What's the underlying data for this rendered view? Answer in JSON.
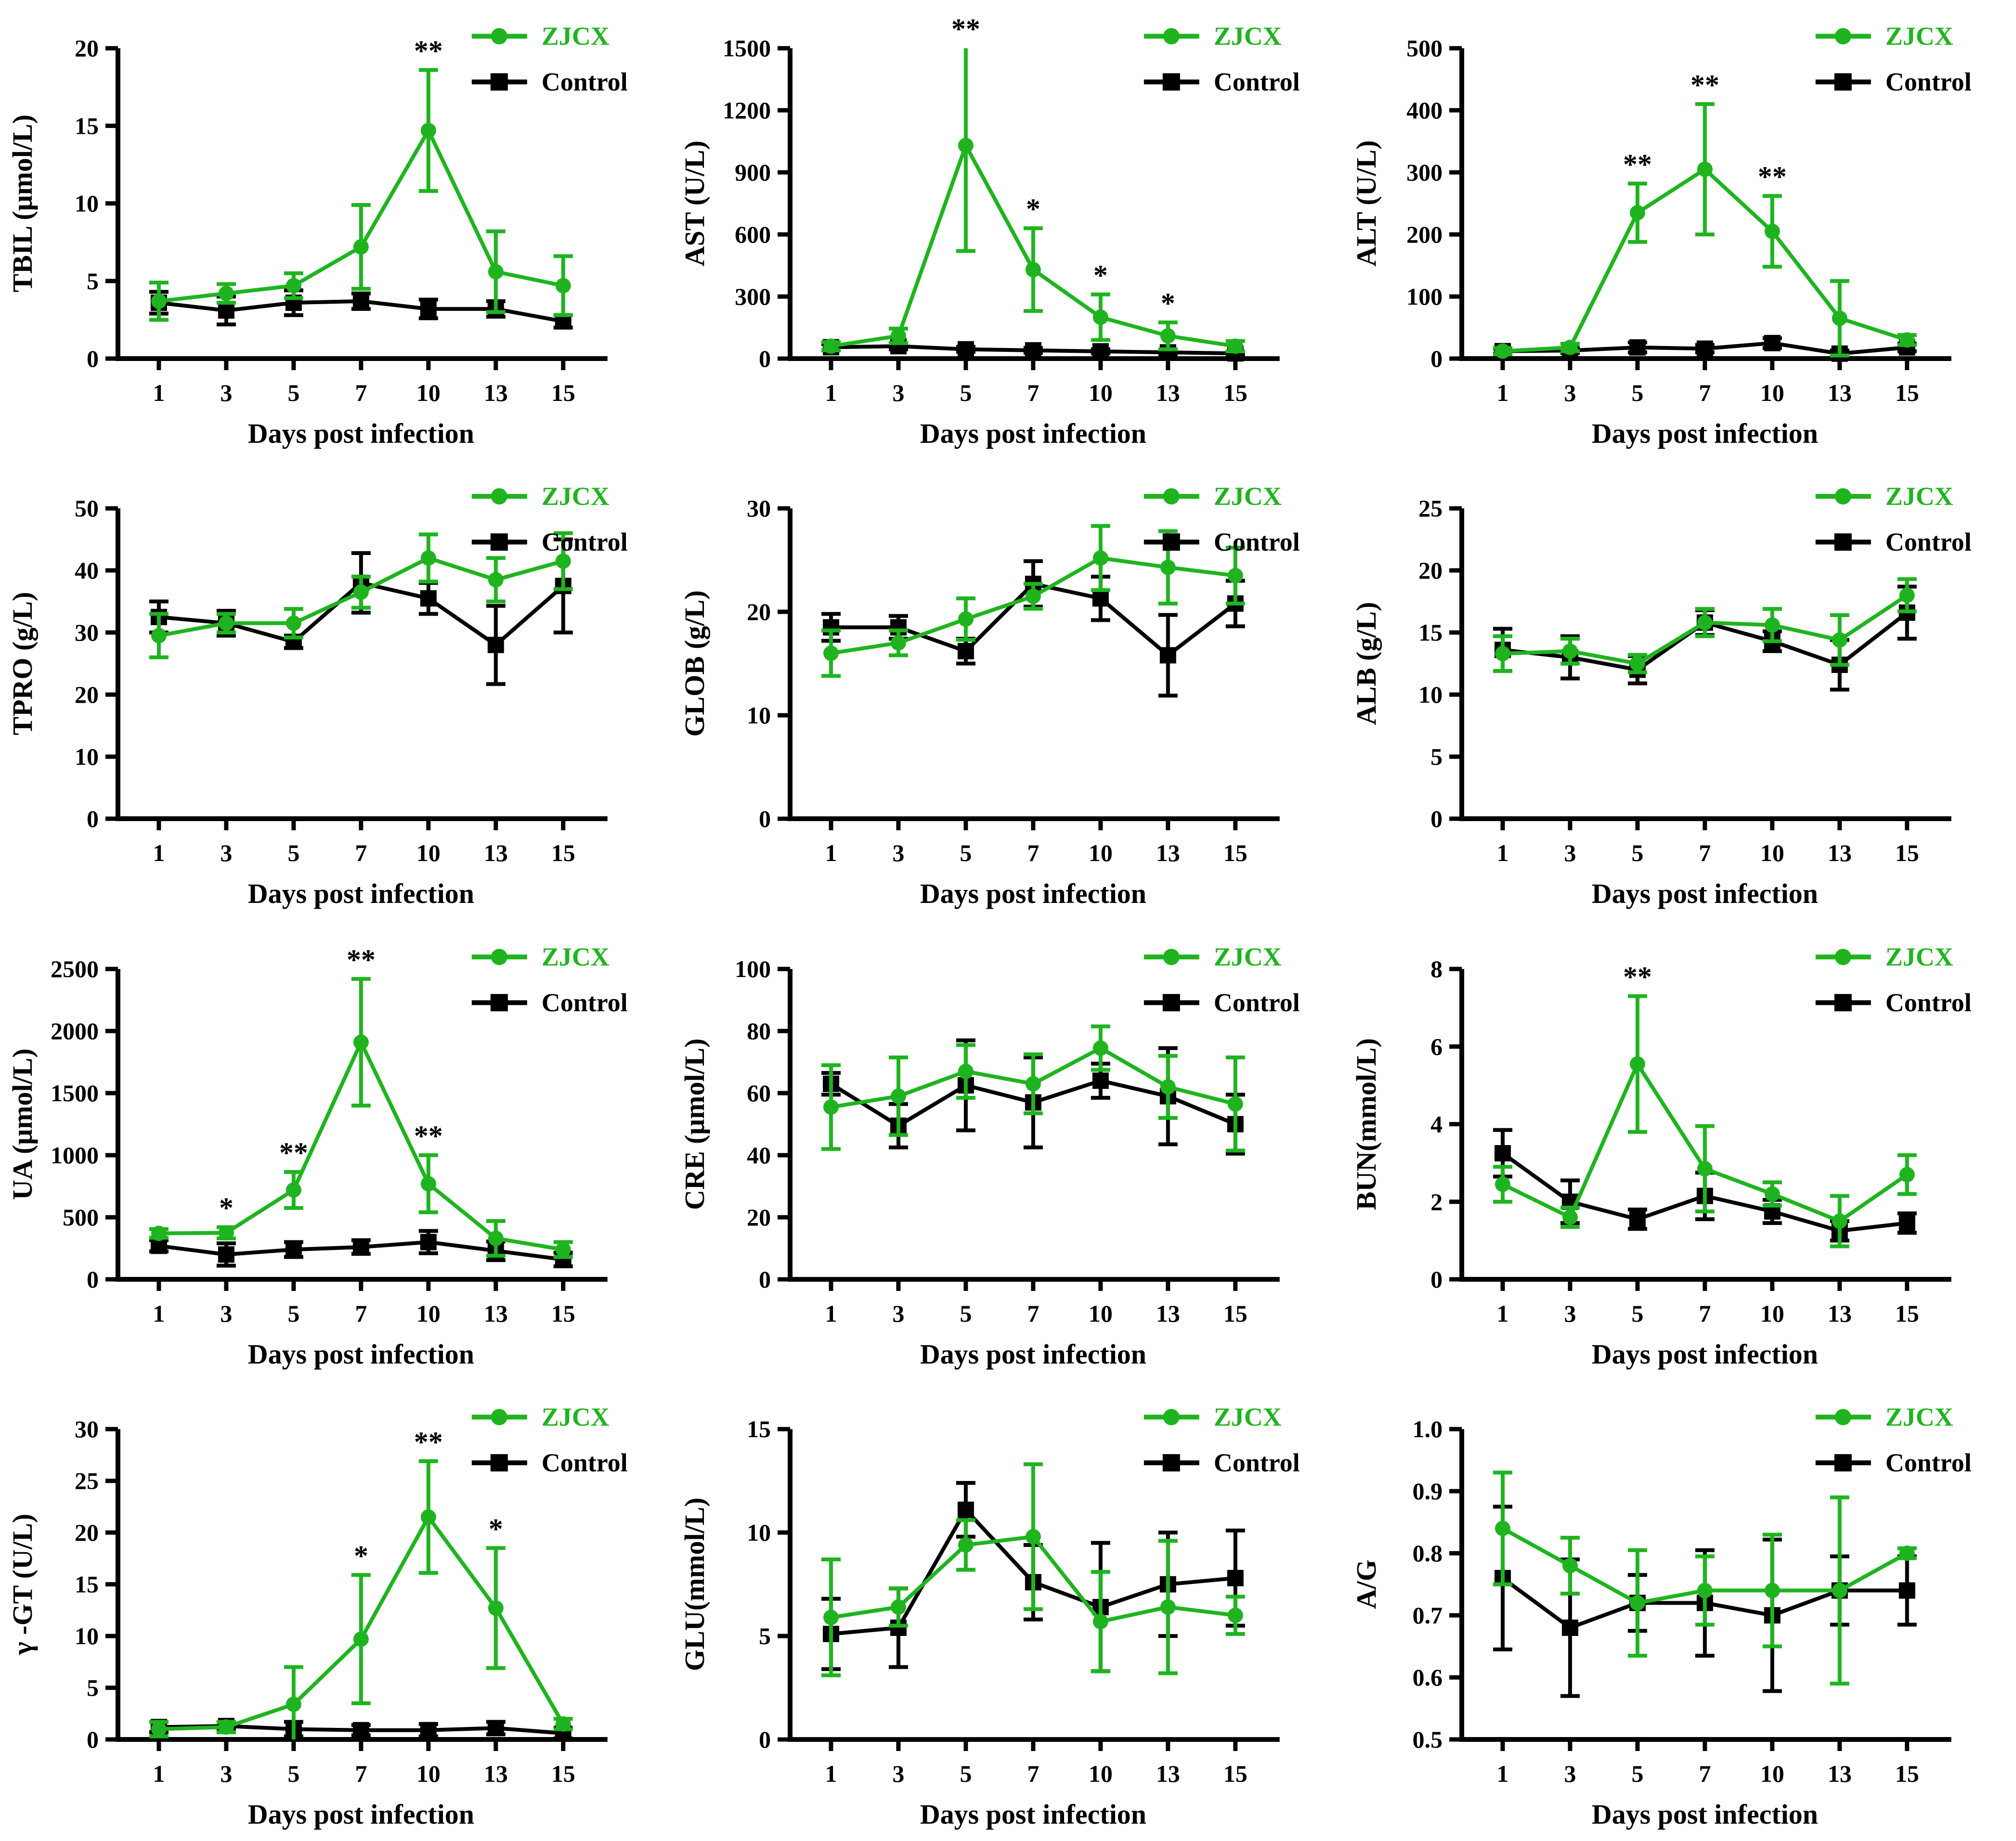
{
  "colors": {
    "zjcx": "#1fb41f",
    "control": "#000000"
  },
  "legend": {
    "zjcx_label": "ZJCX",
    "control_label": "Control"
  },
  "xlabel": "Days post infection",
  "x_labels": [
    "1",
    "3",
    "5",
    "7",
    "10",
    "13",
    "15"
  ],
  "chart_data": [
    {
      "type": "line",
      "id": "tbil",
      "ylabel": "TBIL (μmol/L)",
      "xlabel": "Days post infection",
      "x_labels": [
        "1",
        "3",
        "5",
        "7",
        "10",
        "13",
        "15"
      ],
      "ylim": [
        0,
        20
      ],
      "yticks": [
        0,
        5,
        10,
        15,
        20
      ],
      "ytick_labels": [
        "0",
        "5",
        "10",
        "15",
        "20"
      ],
      "legend_position": "top-right",
      "grid": false,
      "series": [
        {
          "name": "ZJCX",
          "color_key": "zjcx",
          "marker": "circle",
          "values": [
            3.7,
            4.2,
            4.7,
            7.2,
            14.7,
            5.6,
            4.7
          ],
          "err": [
            1.2,
            0.6,
            0.8,
            2.7,
            3.9,
            2.6,
            1.9
          ]
        },
        {
          "name": "Control",
          "color_key": "control",
          "marker": "square",
          "values": [
            3.6,
            3.1,
            3.6,
            3.7,
            3.2,
            3.2,
            2.4
          ],
          "err": [
            0.7,
            0.9,
            0.8,
            0.5,
            0.6,
            0.5,
            0.4
          ]
        }
      ],
      "annotations": [
        {
          "x": "10",
          "text": "**"
        }
      ]
    },
    {
      "type": "line",
      "id": "ast",
      "ylabel": "AST (U/L)",
      "xlabel": "Days post infection",
      "x_labels": [
        "1",
        "3",
        "5",
        "7",
        "10",
        "13",
        "15"
      ],
      "ylim": [
        0,
        1500
      ],
      "yticks": [
        0,
        300,
        600,
        900,
        1200,
        1500
      ],
      "ytick_labels": [
        "0",
        "300",
        "600",
        "900",
        "1200",
        "1500"
      ],
      "legend_position": "top-right",
      "grid": false,
      "series": [
        {
          "name": "ZJCX",
          "color_key": "zjcx",
          "marker": "circle",
          "values": [
            60,
            110,
            1030,
            430,
            200,
            110,
            60
          ],
          "err": [
            20,
            35,
            510,
            200,
            110,
            65,
            25
          ]
        },
        {
          "name": "Control",
          "color_key": "control",
          "marker": "square",
          "values": [
            55,
            60,
            45,
            40,
            35,
            30,
            25
          ],
          "err": [
            15,
            15,
            12,
            12,
            10,
            10,
            8
          ]
        }
      ],
      "annotations": [
        {
          "x": "5",
          "text": "**"
        },
        {
          "x": "7",
          "text": "*"
        },
        {
          "x": "10",
          "text": "*"
        },
        {
          "x": "13",
          "text": "*"
        }
      ]
    },
    {
      "type": "line",
      "id": "alt",
      "ylabel": "ALT (U/L)",
      "xlabel": "Days post infection",
      "x_labels": [
        "1",
        "3",
        "5",
        "7",
        "10",
        "13",
        "15"
      ],
      "ylim": [
        0,
        500
      ],
      "yticks": [
        0,
        100,
        200,
        300,
        400,
        500
      ],
      "ytick_labels": [
        "0",
        "100",
        "200",
        "300",
        "400",
        "500"
      ],
      "legend_position": "top-right",
      "grid": false,
      "series": [
        {
          "name": "ZJCX",
          "color_key": "zjcx",
          "marker": "circle",
          "values": [
            12,
            18,
            235,
            305,
            205,
            65,
            30
          ],
          "err": [
            5,
            6,
            47,
            105,
            57,
            60,
            8
          ]
        },
        {
          "name": "Control",
          "color_key": "control",
          "marker": "square",
          "values": [
            12,
            13,
            18,
            16,
            25,
            8,
            18
          ],
          "err": [
            4,
            4,
            8,
            6,
            8,
            5,
            6
          ]
        }
      ],
      "annotations": [
        {
          "x": "5",
          "text": "**"
        },
        {
          "x": "7",
          "text": "**"
        },
        {
          "x": "10",
          "text": "**"
        }
      ]
    },
    {
      "type": "line",
      "id": "tpro",
      "ylabel": "TPRO (g/L)",
      "xlabel": "Days post infection",
      "x_labels": [
        "1",
        "3",
        "5",
        "7",
        "10",
        "13",
        "15"
      ],
      "ylim": [
        0,
        50
      ],
      "yticks": [
        0,
        10,
        20,
        30,
        40,
        50
      ],
      "ytick_labels": [
        "0",
        "10",
        "20",
        "30",
        "40",
        "50"
      ],
      "legend_position": "top-right",
      "grid": false,
      "series": [
        {
          "name": "ZJCX",
          "color_key": "zjcx",
          "marker": "circle",
          "values": [
            29.5,
            31.5,
            31.5,
            36.5,
            42,
            38.5,
            41.5
          ],
          "err": [
            3.5,
            1.5,
            2.3,
            2.5,
            3.8,
            3.5,
            4.5
          ]
        },
        {
          "name": "Control",
          "color_key": "control",
          "marker": "square",
          "values": [
            32.5,
            31.5,
            28.5,
            38,
            35.5,
            28,
            37.5
          ],
          "err": [
            2.5,
            2.0,
            1.0,
            4.8,
            2.5,
            6.3,
            7.5
          ]
        }
      ],
      "annotations": []
    },
    {
      "type": "line",
      "id": "glob",
      "ylabel": "GLOB (g/L)",
      "xlabel": "Days post infection",
      "x_labels": [
        "1",
        "3",
        "5",
        "7",
        "10",
        "13",
        "15"
      ],
      "ylim": [
        0,
        30
      ],
      "yticks": [
        0,
        10,
        20,
        30
      ],
      "ytick_labels": [
        "0",
        "10",
        "20",
        "30"
      ],
      "legend_position": "top-right",
      "grid": false,
      "series": [
        {
          "name": "ZJCX",
          "color_key": "zjcx",
          "marker": "circle",
          "values": [
            16,
            17,
            19.3,
            21.5,
            25.2,
            24.3,
            23.5
          ],
          "err": [
            2.2,
            1.2,
            2.0,
            1.2,
            3.1,
            3.5,
            2.7
          ]
        },
        {
          "name": "Control",
          "color_key": "control",
          "marker": "square",
          "values": [
            18.5,
            18.5,
            16.2,
            22.7,
            21.3,
            15.8,
            20.8
          ],
          "err": [
            1.3,
            1.1,
            1.2,
            2.2,
            2.1,
            3.9,
            2.2
          ]
        }
      ],
      "annotations": []
    },
    {
      "type": "line",
      "id": "alb",
      "ylabel": "ALB (g/L)",
      "xlabel": "Days post infection",
      "x_labels": [
        "1",
        "3",
        "5",
        "7",
        "10",
        "13",
        "15"
      ],
      "ylim": [
        0,
        25
      ],
      "yticks": [
        0,
        5,
        10,
        15,
        20,
        25
      ],
      "ytick_labels": [
        "0",
        "5",
        "10",
        "15",
        "20",
        "25"
      ],
      "legend_position": "top-right",
      "grid": false,
      "series": [
        {
          "name": "ZJCX",
          "color_key": "zjcx",
          "marker": "circle",
          "values": [
            13.3,
            13.5,
            12.5,
            15.8,
            15.6,
            14.4,
            18.0
          ],
          "err": [
            1.4,
            1.0,
            0.7,
            1.1,
            1.3,
            2.0,
            1.3
          ]
        },
        {
          "name": "Control",
          "color_key": "control",
          "marker": "square",
          "values": [
            13.6,
            13.0,
            12.0,
            15.8,
            14.3,
            12.4,
            16.6
          ],
          "err": [
            1.7,
            1.7,
            1.1,
            1.0,
            0.8,
            2.0,
            2.1
          ]
        }
      ],
      "annotations": []
    },
    {
      "type": "line",
      "id": "ua",
      "ylabel": "UA (μmol/L)",
      "xlabel": "Days post infection",
      "x_labels": [
        "1",
        "3",
        "5",
        "7",
        "10",
        "13",
        "15"
      ],
      "ylim": [
        0,
        2500
      ],
      "yticks": [
        0,
        500,
        1000,
        1500,
        2000,
        2500
      ],
      "ytick_labels": [
        "0",
        "500",
        "1000",
        "1500",
        "2000",
        "2500"
      ],
      "legend_position": "top-right",
      "grid": false,
      "series": [
        {
          "name": "ZJCX",
          "color_key": "zjcx",
          "marker": "circle",
          "values": [
            370,
            375,
            720,
            1910,
            770,
            330,
            240
          ],
          "err": [
            35,
            45,
            145,
            510,
            230,
            140,
            60
          ]
        },
        {
          "name": "Control",
          "color_key": "control",
          "marker": "square",
          "values": [
            270,
            200,
            240,
            260,
            300,
            230,
            160
          ],
          "err": [
            45,
            90,
            60,
            55,
            90,
            75,
            55
          ]
        }
      ],
      "annotations": [
        {
          "x": "3",
          "text": "*"
        },
        {
          "x": "5",
          "text": "**"
        },
        {
          "x": "7",
          "text": "**"
        },
        {
          "x": "10",
          "text": "**"
        }
      ]
    },
    {
      "type": "line",
      "id": "cre",
      "ylabel": "CRE (μmol/L)",
      "xlabel": "Days post infection",
      "x_labels": [
        "1",
        "3",
        "5",
        "7",
        "10",
        "13",
        "15"
      ],
      "ylim": [
        0,
        100
      ],
      "yticks": [
        0,
        20,
        40,
        60,
        80,
        100
      ],
      "ytick_labels": [
        "0",
        "20",
        "40",
        "60",
        "80",
        "100"
      ],
      "legend_position": "top-right",
      "grid": false,
      "series": [
        {
          "name": "ZJCX",
          "color_key": "zjcx",
          "marker": "circle",
          "values": [
            55.5,
            59,
            67,
            63,
            74.5,
            62,
            56.5
          ],
          "err": [
            13.5,
            12.5,
            8.5,
            9.5,
            7,
            10,
            15
          ]
        },
        {
          "name": "Control",
          "color_key": "control",
          "marker": "square",
          "values": [
            63,
            49.5,
            62.5,
            57,
            64,
            59,
            50
          ],
          "err": [
            3.5,
            7,
            14.5,
            14.5,
            5.5,
            15.5,
            9.5
          ]
        }
      ],
      "annotations": []
    },
    {
      "type": "line",
      "id": "bun",
      "ylabel": "BUN(mmol/L)",
      "xlabel": "Days post infection",
      "x_labels": [
        "1",
        "3",
        "5",
        "7",
        "10",
        "13",
        "15"
      ],
      "ylim": [
        0,
        8
      ],
      "yticks": [
        0,
        2,
        4,
        6,
        8
      ],
      "ytick_labels": [
        "0",
        "2",
        "4",
        "6",
        "8"
      ],
      "legend_position": "top-right",
      "grid": false,
      "series": [
        {
          "name": "ZJCX",
          "color_key": "zjcx",
          "marker": "circle",
          "values": [
            2.45,
            1.6,
            5.55,
            2.85,
            2.2,
            1.5,
            2.7
          ],
          "err": [
            0.45,
            0.25,
            1.75,
            1.1,
            0.3,
            0.65,
            0.5
          ]
        },
        {
          "name": "Control",
          "color_key": "control",
          "marker": "square",
          "values": [
            3.25,
            2.0,
            1.55,
            2.15,
            1.75,
            1.25,
            1.45
          ],
          "err": [
            0.6,
            0.55,
            0.25,
            0.6,
            0.3,
            0.25,
            0.25
          ]
        }
      ],
      "annotations": [
        {
          "x": "5",
          "text": "**"
        }
      ]
    },
    {
      "type": "line",
      "id": "ggt",
      "ylabel": "γ -GT (U/L)",
      "xlabel": "Days post infection",
      "x_labels": [
        "1",
        "3",
        "5",
        "7",
        "10",
        "13",
        "15"
      ],
      "ylim": [
        0,
        30
      ],
      "yticks": [
        0,
        5,
        10,
        15,
        20,
        25,
        30
      ],
      "ytick_labels": [
        "0",
        "5",
        "10",
        "15",
        "20",
        "25",
        "30"
      ],
      "legend_position": "top-right",
      "grid": false,
      "series": [
        {
          "name": "ZJCX",
          "color_key": "zjcx",
          "marker": "circle",
          "values": [
            1.0,
            1.2,
            3.4,
            9.7,
            21.5,
            12.7,
            1.5
          ],
          "err": [
            0.7,
            0.5,
            3.6,
            6.2,
            5.4,
            5.8,
            0.5
          ]
        },
        {
          "name": "Control",
          "color_key": "control",
          "marker": "square",
          "values": [
            1.2,
            1.3,
            1.0,
            0.9,
            0.9,
            1.1,
            0.6
          ],
          "err": [
            0.5,
            0.4,
            0.7,
            0.5,
            0.6,
            0.6,
            0.5
          ]
        }
      ],
      "annotations": [
        {
          "x": "7",
          "text": "*"
        },
        {
          "x": "10",
          "text": "**"
        },
        {
          "x": "13",
          "text": "*"
        }
      ]
    },
    {
      "type": "line",
      "id": "glu",
      "ylabel": "GLU(mmol/L)",
      "xlabel": "Days post infection",
      "x_labels": [
        "1",
        "3",
        "5",
        "7",
        "10",
        "13",
        "15"
      ],
      "ylim": [
        0,
        15
      ],
      "yticks": [
        0,
        5,
        10,
        15
      ],
      "ytick_labels": [
        "0",
        "5",
        "10",
        "15"
      ],
      "legend_position": "top-right",
      "grid": false,
      "series": [
        {
          "name": "ZJCX",
          "color_key": "zjcx",
          "marker": "circle",
          "values": [
            5.9,
            6.4,
            9.4,
            9.8,
            5.7,
            6.4,
            6.0
          ],
          "err": [
            2.8,
            0.9,
            1.2,
            3.5,
            2.4,
            3.2,
            0.9
          ]
        },
        {
          "name": "Control",
          "color_key": "control",
          "marker": "square",
          "values": [
            5.1,
            5.4,
            11.1,
            7.6,
            6.4,
            7.5,
            7.8
          ],
          "err": [
            1.7,
            1.9,
            1.3,
            1.8,
            3.1,
            2.5,
            2.3
          ]
        }
      ],
      "annotations": []
    },
    {
      "type": "line",
      "id": "ag",
      "ylabel": "A/G",
      "xlabel": "Days post infection",
      "x_labels": [
        "1",
        "3",
        "5",
        "7",
        "10",
        "13",
        "15"
      ],
      "ylim": [
        0.5,
        1.0
      ],
      "yticks": [
        0.5,
        0.6,
        0.7,
        0.8,
        0.9,
        1.0
      ],
      "ytick_labels": [
        "0.5",
        "0.6",
        "0.7",
        "0.8",
        "0.9",
        "1.0"
      ],
      "legend_position": "top-right",
      "grid": false,
      "series": [
        {
          "name": "ZJCX",
          "color_key": "zjcx",
          "marker": "circle",
          "values": [
            0.84,
            0.78,
            0.72,
            0.74,
            0.74,
            0.74,
            0.8
          ],
          "err": [
            0.09,
            0.045,
            0.085,
            0.055,
            0.09,
            0.15,
            0.008
          ]
        },
        {
          "name": "Control",
          "color_key": "control",
          "marker": "square",
          "values": [
            0.76,
            0.68,
            0.72,
            0.72,
            0.7,
            0.74,
            0.74
          ],
          "err": [
            0.115,
            0.11,
            0.045,
            0.085,
            0.122,
            0.055,
            0.055
          ]
        }
      ],
      "annotations": []
    }
  ]
}
